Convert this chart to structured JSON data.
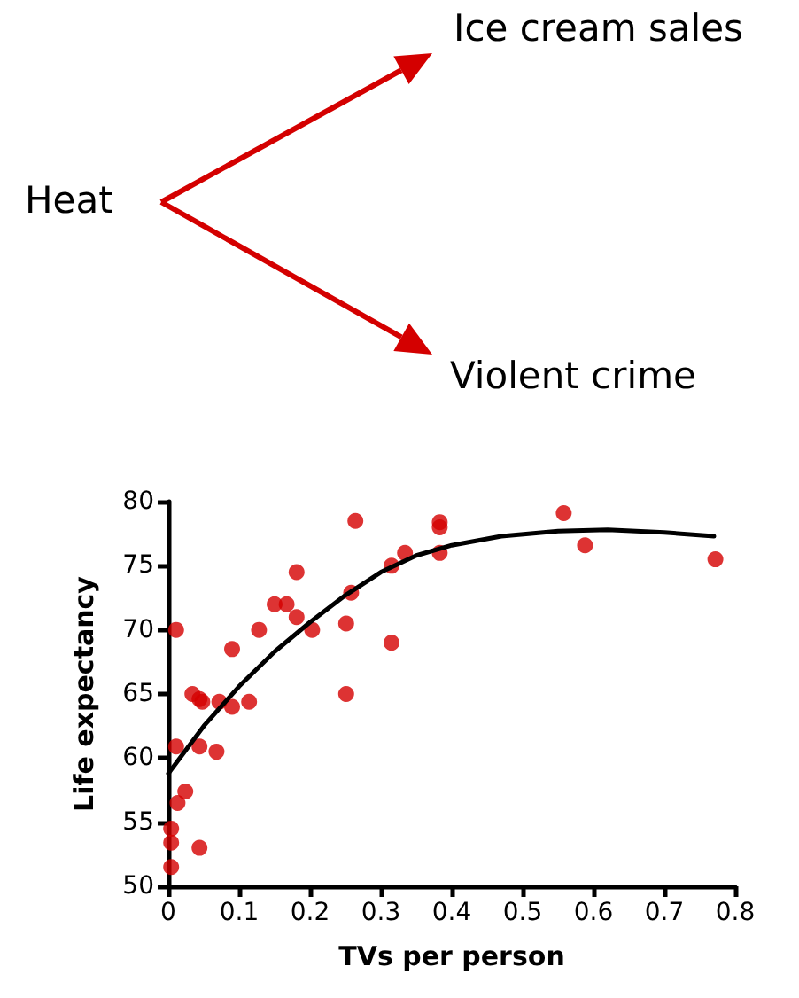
{
  "chart_data": {
    "type": "scatter",
    "xlabel": "TVs per person",
    "ylabel": "Life expectancy",
    "annotations": [
      "Heat",
      "Ice cream sales",
      "Violent crime"
    ],
    "xlim": [
      0,
      0.8
    ],
    "xticks": [
      0,
      0.1,
      0.2,
      0.3,
      0.4,
      0.5,
      0.6,
      0.7,
      0.8
    ],
    "ylim": [
      50,
      80
    ],
    "yticks": [
      50,
      55,
      60,
      65,
      70,
      75,
      80
    ],
    "grid": false,
    "marker": "circle",
    "series": [
      {
        "color": "#d40000",
        "x": [
          0.011,
          0.004,
          0.004,
          0.004,
          0.013,
          0.024,
          0.011,
          0.034,
          0.044,
          0.048,
          0.044,
          0.044,
          0.068,
          0.072,
          0.09,
          0.09,
          0.114,
          0.128,
          0.15,
          0.167,
          0.181,
          0.181,
          0.203,
          0.251,
          0.251,
          0.258,
          0.264,
          0.315,
          0.315,
          0.334,
          0.383,
          0.383,
          0.383,
          0.558,
          0.588,
          0.772
        ],
        "values": [
          70,
          54.5,
          53.4,
          51.5,
          56.5,
          57.4,
          60.9,
          65,
          64.6,
          64.4,
          60.9,
          53,
          60.5,
          64.4,
          64,
          68.5,
          64.4,
          70,
          72,
          72,
          74.5,
          71,
          70,
          70.5,
          65,
          72.9,
          78.5,
          69,
          75,
          76,
          78.4,
          78,
          76,
          79.1,
          76.6,
          75.5
        ]
      },
      {
        "type": "line",
        "color": "#000000",
        "marker": "none",
        "line_style": "solid",
        "x": [
          0,
          0.05,
          0.1,
          0.15,
          0.2,
          0.25,
          0.3,
          0.35,
          0.4,
          0.47,
          0.55,
          0.62,
          0.7,
          0.77
        ],
        "values": [
          58.8,
          62.5,
          65.6,
          68.3,
          70.6,
          72.7,
          74.5,
          75.8,
          76.6,
          77.3,
          77.7,
          77.8,
          77.6,
          77.3
        ]
      }
    ]
  }
}
